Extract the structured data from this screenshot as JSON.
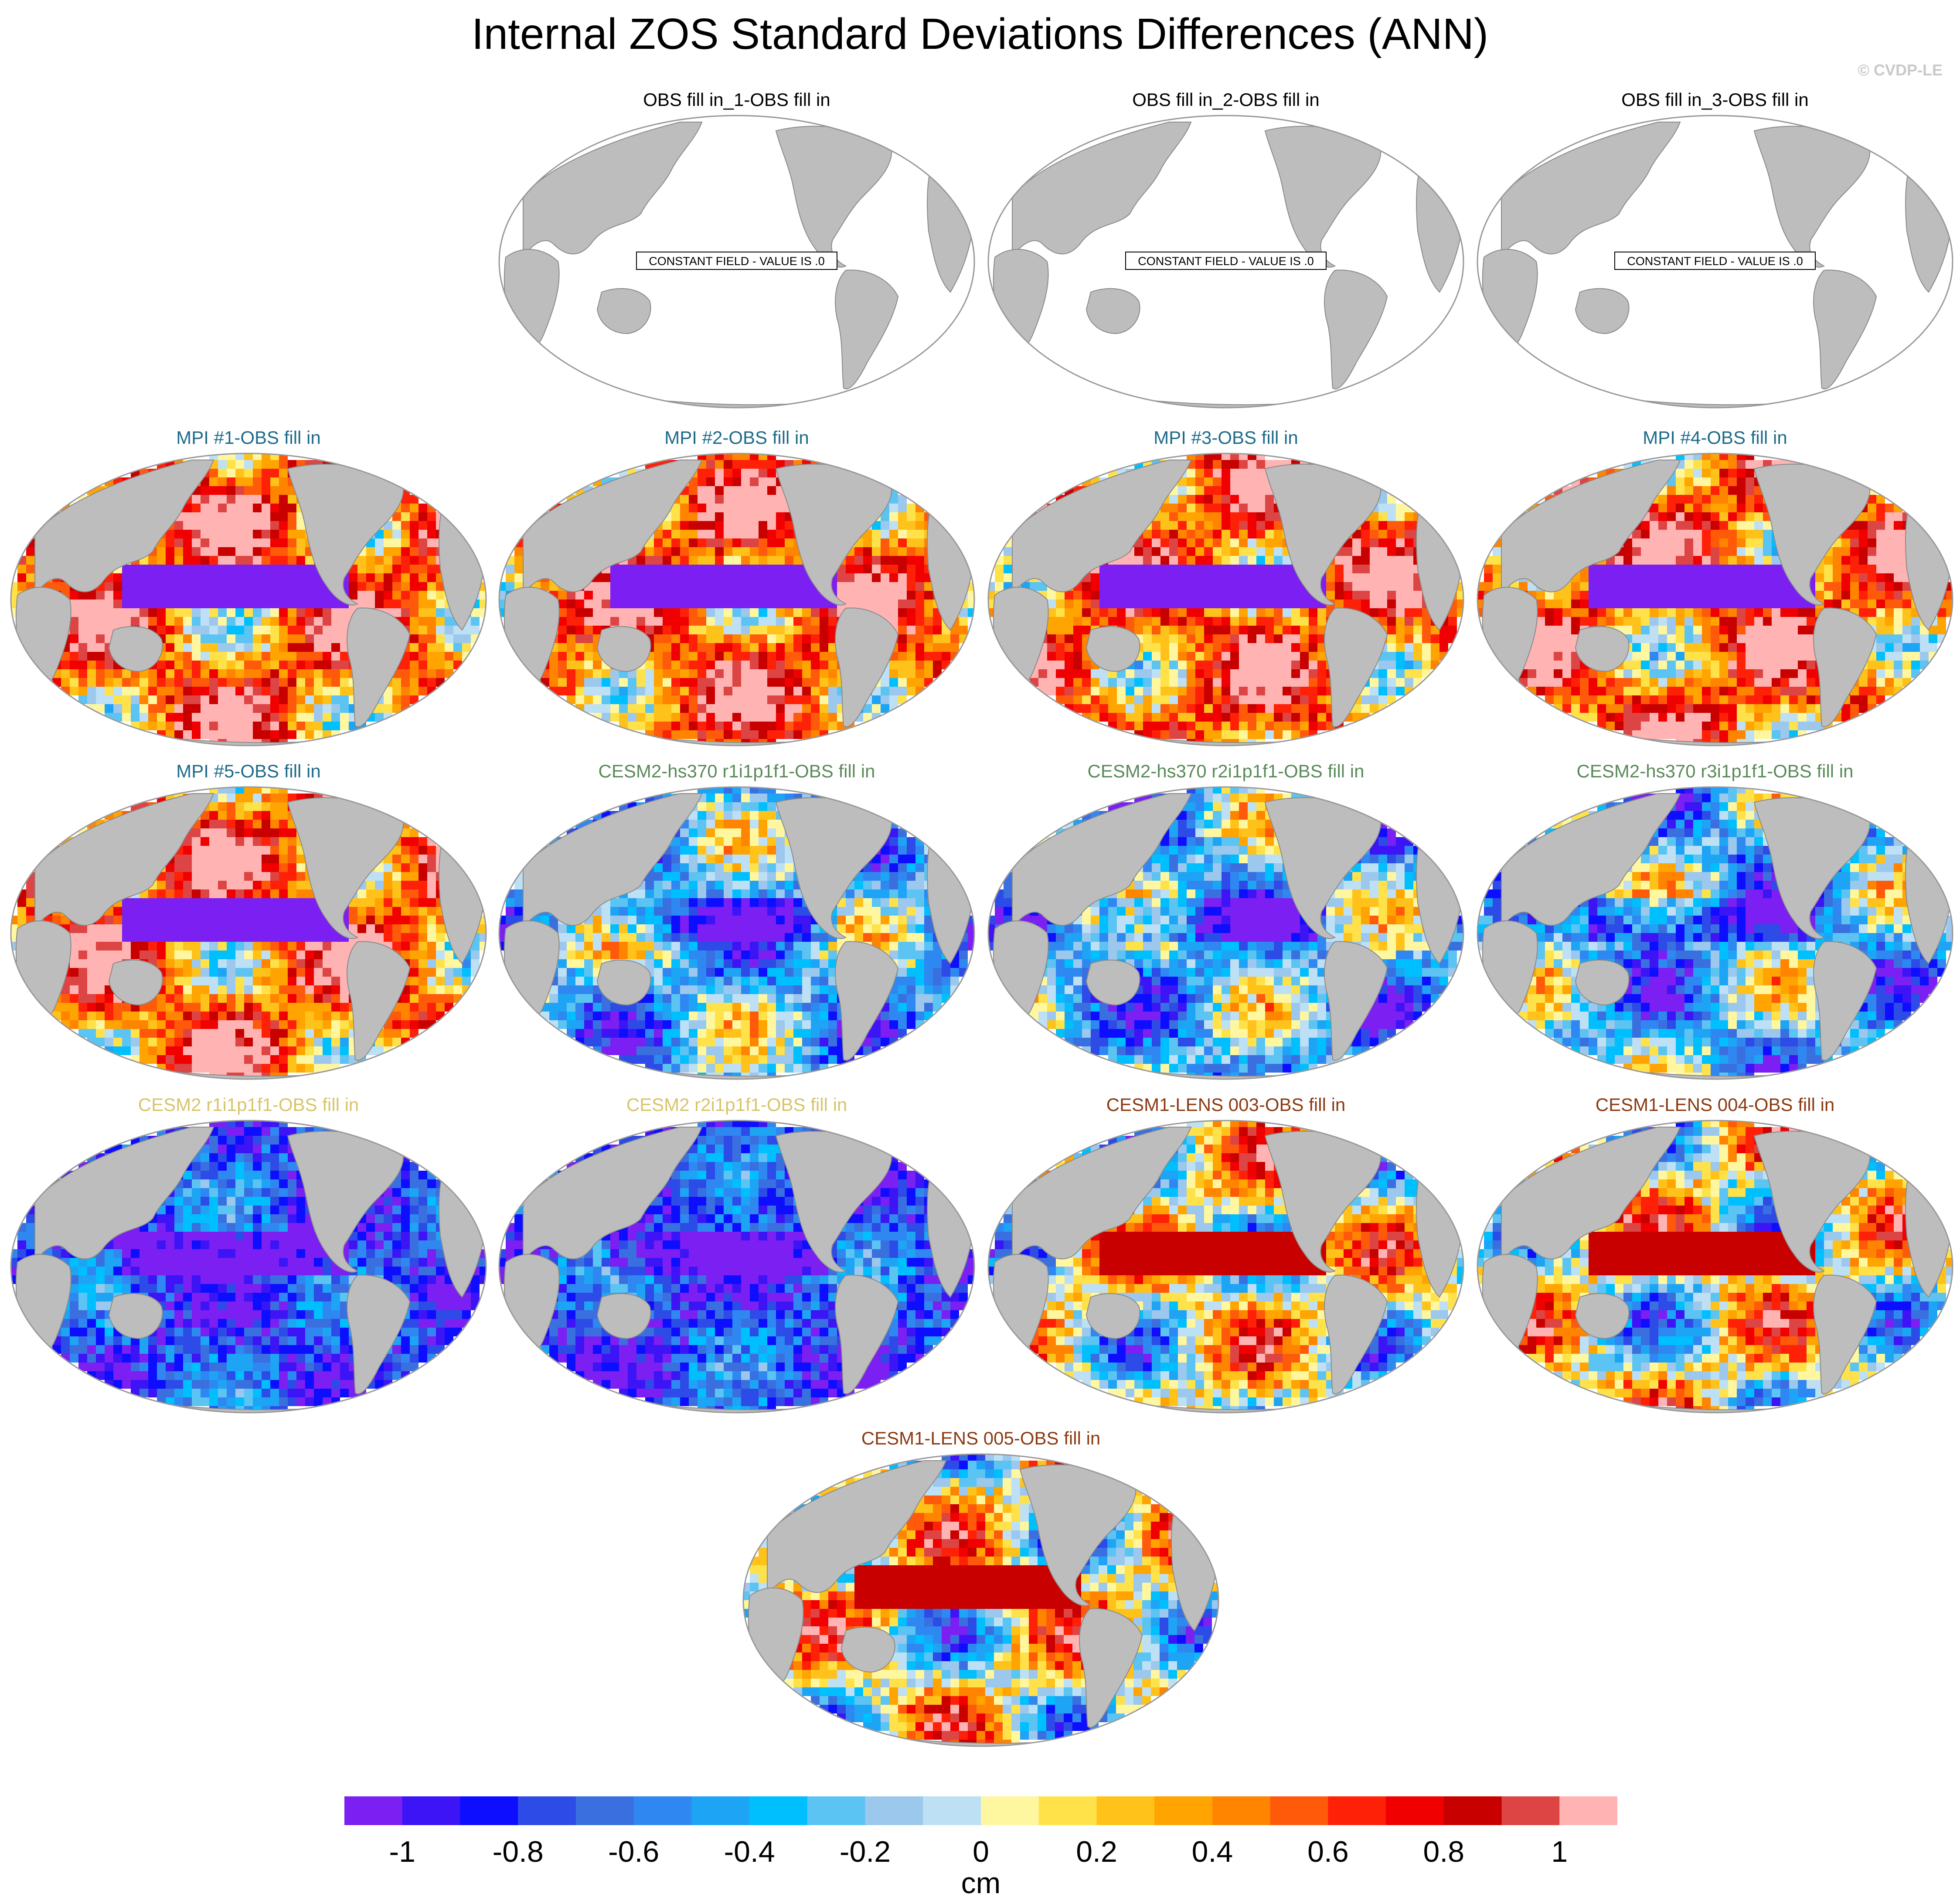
{
  "title": "Internal ZOS Standard Deviations Differences (ANN)",
  "credit": "© CVDP-LE",
  "colors": {
    "land": "#bdbdbd",
    "ocean_zero": "#ffffff",
    "title_obs": "#000000",
    "title_mpi": "#1e6b8a",
    "title_cesm2_hs370": "#5a8a5a",
    "title_cesm2": "#d8c46a",
    "title_cesm1_lens": "#8b3a12"
  },
  "panels": [
    {
      "title": "OBS fill in_1-OBS fill in",
      "group": "obs",
      "note": "CONSTANT FIELD - VALUE IS .0"
    },
    {
      "title": "OBS fill in_2-OBS fill in",
      "group": "obs",
      "note": "CONSTANT FIELD - VALUE IS .0"
    },
    {
      "title": "OBS fill in_3-OBS fill in",
      "group": "obs",
      "note": "CONSTANT FIELD - VALUE IS .0"
    },
    {
      "title": "MPI #1-OBS fill in",
      "group": "mpi"
    },
    {
      "title": "MPI #2-OBS fill in",
      "group": "mpi"
    },
    {
      "title": "MPI #3-OBS fill in",
      "group": "mpi"
    },
    {
      "title": "MPI #4-OBS fill in",
      "group": "mpi"
    },
    {
      "title": "MPI #5-OBS fill in",
      "group": "mpi"
    },
    {
      "title": "CESM2-hs370 r1i1p1f1-OBS fill in",
      "group": "cesm2_hs370"
    },
    {
      "title": "CESM2-hs370 r2i1p1f1-OBS fill in",
      "group": "cesm2_hs370"
    },
    {
      "title": "CESM2-hs370 r3i1p1f1-OBS fill in",
      "group": "cesm2_hs370"
    },
    {
      "title": "CESM2 r1i1p1f1-OBS fill in",
      "group": "cesm2"
    },
    {
      "title": "CESM2 r2i1p1f1-OBS fill in",
      "group": "cesm2"
    },
    {
      "title": "CESM1-LENS 003-OBS fill in",
      "group": "cesm1_lens"
    },
    {
      "title": "CESM1-LENS 004-OBS fill in",
      "group": "cesm1_lens"
    },
    {
      "title": "CESM1-LENS 005-OBS fill in",
      "group": "cesm1_lens"
    }
  ],
  "colorbar": {
    "units": "cm",
    "tick_labels": [
      "-1",
      "-0.8",
      "-0.6",
      "-0.4",
      "-0.2",
      "0",
      "0.2",
      "0.4",
      "0.6",
      "0.8",
      "1"
    ],
    "tick_values": [
      -1,
      -0.8,
      -0.6,
      -0.4,
      -0.2,
      0,
      0.2,
      0.4,
      0.6,
      0.8,
      1
    ],
    "range": [
      -1.1,
      1.1
    ],
    "colors": [
      "#7b1ff2",
      "#3c14f5",
      "#0d0dff",
      "#2d4be6",
      "#3a6fe0",
      "#2f88f2",
      "#1ea4f5",
      "#00bfff",
      "#5cc4f2",
      "#9bc8ec",
      "#bde0f5",
      "#fff7a0",
      "#ffe24a",
      "#ffc21a",
      "#ffa400",
      "#ff8400",
      "#ff5a0a",
      "#ff2008",
      "#f00000",
      "#c80000",
      "#dd4444",
      "#ffb3b3"
    ]
  }
}
